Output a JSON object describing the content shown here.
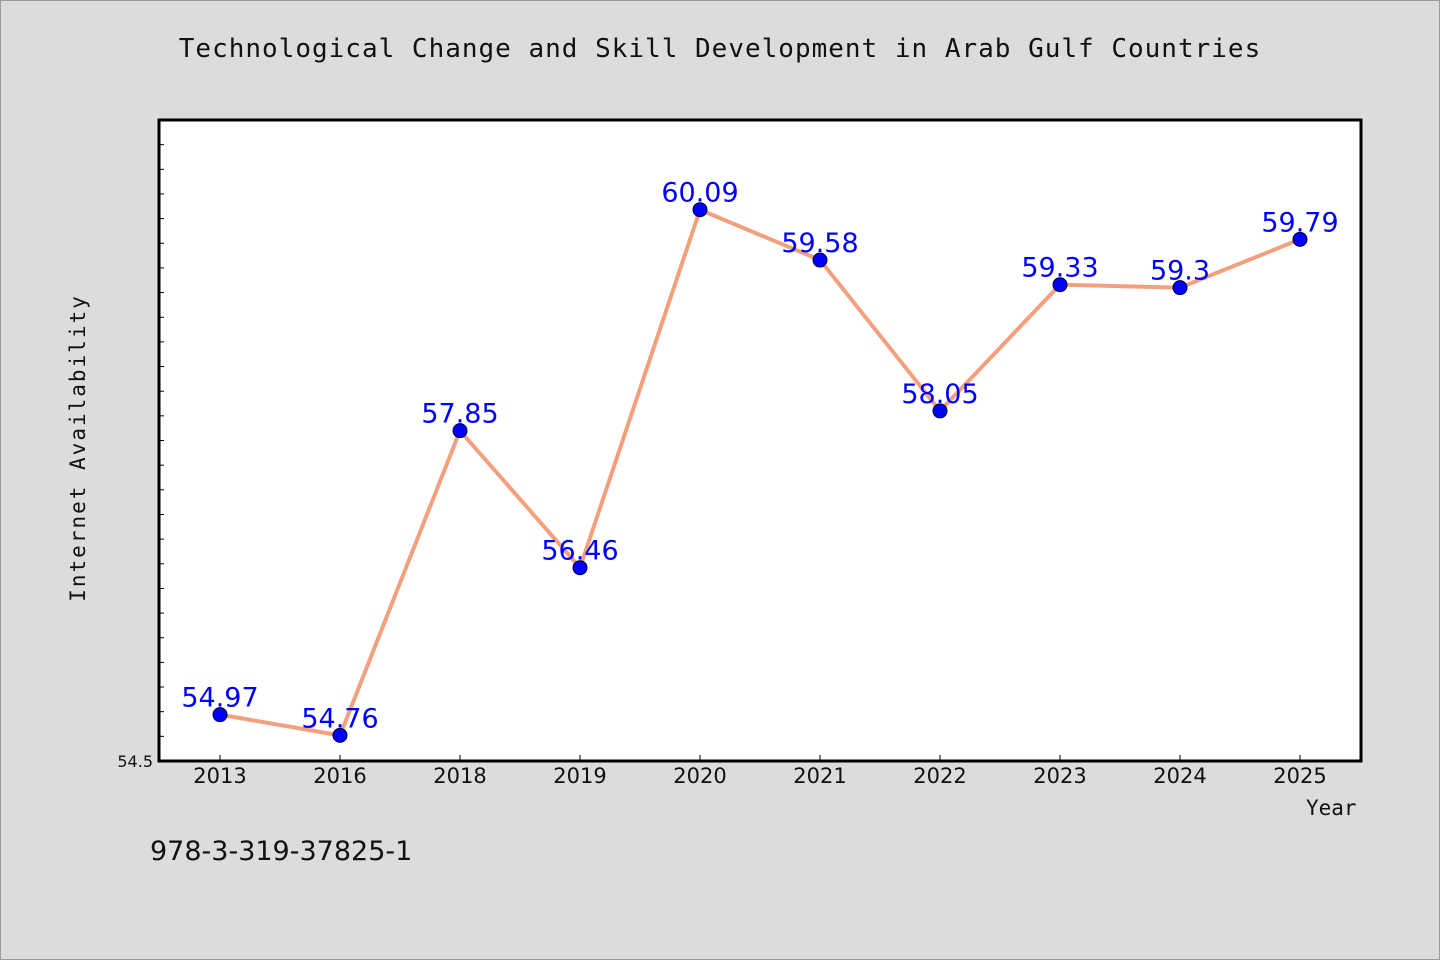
{
  "chart_data": {
    "type": "line",
    "title": "Technological Change and Skill Development in Arab Gulf Countries",
    "xlabel": "Year",
    "ylabel": "Internet Availability",
    "categories": [
      "2013",
      "2016",
      "2018",
      "2019",
      "2020",
      "2021",
      "2022",
      "2023",
      "2024",
      "2025"
    ],
    "series": [
      {
        "values": [
          54.97,
          54.76,
          57.85,
          56.46,
          60.09,
          59.58,
          58.05,
          59.33,
          59.3,
          59.79
        ],
        "data_labels": [
          "54.97",
          "54.76",
          "57.85",
          "56.46",
          "60.09",
          "59.58",
          "58.05",
          "59.33",
          "59.3",
          "59.79"
        ]
      }
    ],
    "ylim": [
      54.5,
      61.0
    ],
    "y_tick_labels": [
      "54.5"
    ],
    "grid": false,
    "legend": "none",
    "colors": {
      "line": "#f4a07e",
      "marker": "#0000ff",
      "label": "#0000ff",
      "background": "#dcdcdc",
      "plot_background": "#ffffff"
    }
  },
  "footer": {
    "isbn": "978-3-319-37825-1"
  }
}
